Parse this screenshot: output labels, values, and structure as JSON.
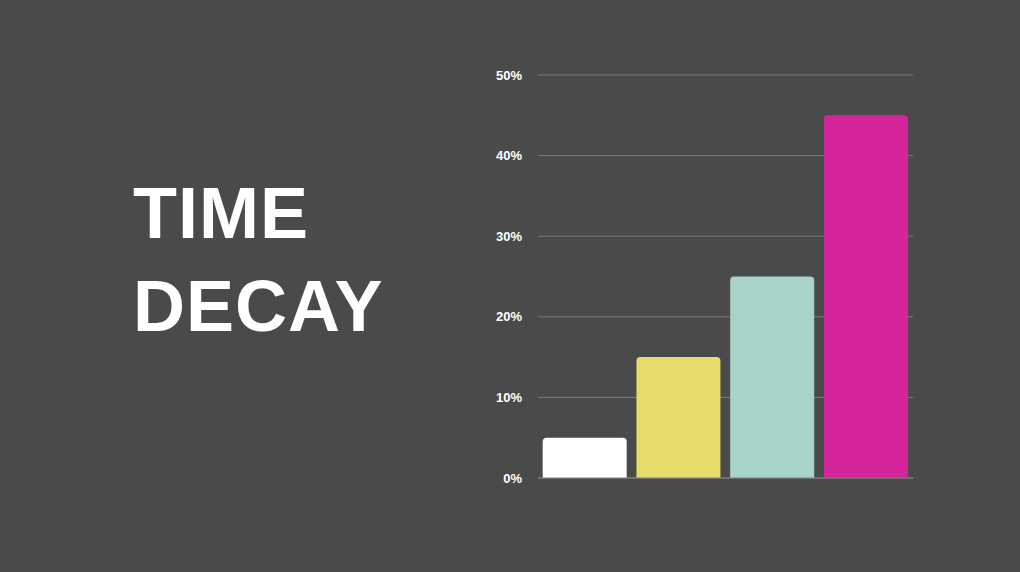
{
  "chart_data": {
    "type": "bar",
    "title": "TIME DECAY",
    "categories": [
      null,
      null,
      null,
      null
    ],
    "values": [
      5,
      15,
      25,
      45
    ],
    "colors": [
      "#ffffff",
      "#e6dc6a",
      "#a8d3c8",
      "#d4259a"
    ],
    "ylim": [
      0,
      50
    ],
    "yticks": [
      {
        "value": 0,
        "label": "0%"
      },
      {
        "value": 10,
        "label": "10%"
      },
      {
        "value": 20,
        "label": "20%"
      },
      {
        "value": 30,
        "label": "30%"
      },
      {
        "value": 40,
        "label": "40%"
      },
      {
        "value": 50,
        "label": "50%"
      }
    ],
    "grid": true,
    "tick_labels": "y"
  }
}
